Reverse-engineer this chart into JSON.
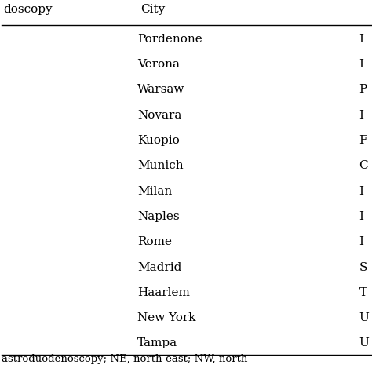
{
  "header_col1": "doscopy",
  "header_col2": "City",
  "header_col3_partial": "",
  "cities": [
    "Pordenone",
    "Verona",
    "Warsaw",
    "Novara",
    "Kuopio",
    "Munich",
    "Milan",
    "Naples",
    "Rome",
    "Madrid",
    "Haarlem",
    "New York",
    "Tampa"
  ],
  "col3_letters": [
    "I",
    "I",
    "P",
    "I",
    "F",
    "C",
    "I",
    "I",
    "I",
    "S",
    "T",
    "U",
    "U"
  ],
  "footer_text": "astroduodenoscopy; NE, north-east; NW, north",
  "bg_color": "#ffffff",
  "text_color": "#000000",
  "font_size": 11,
  "header_font_size": 11
}
